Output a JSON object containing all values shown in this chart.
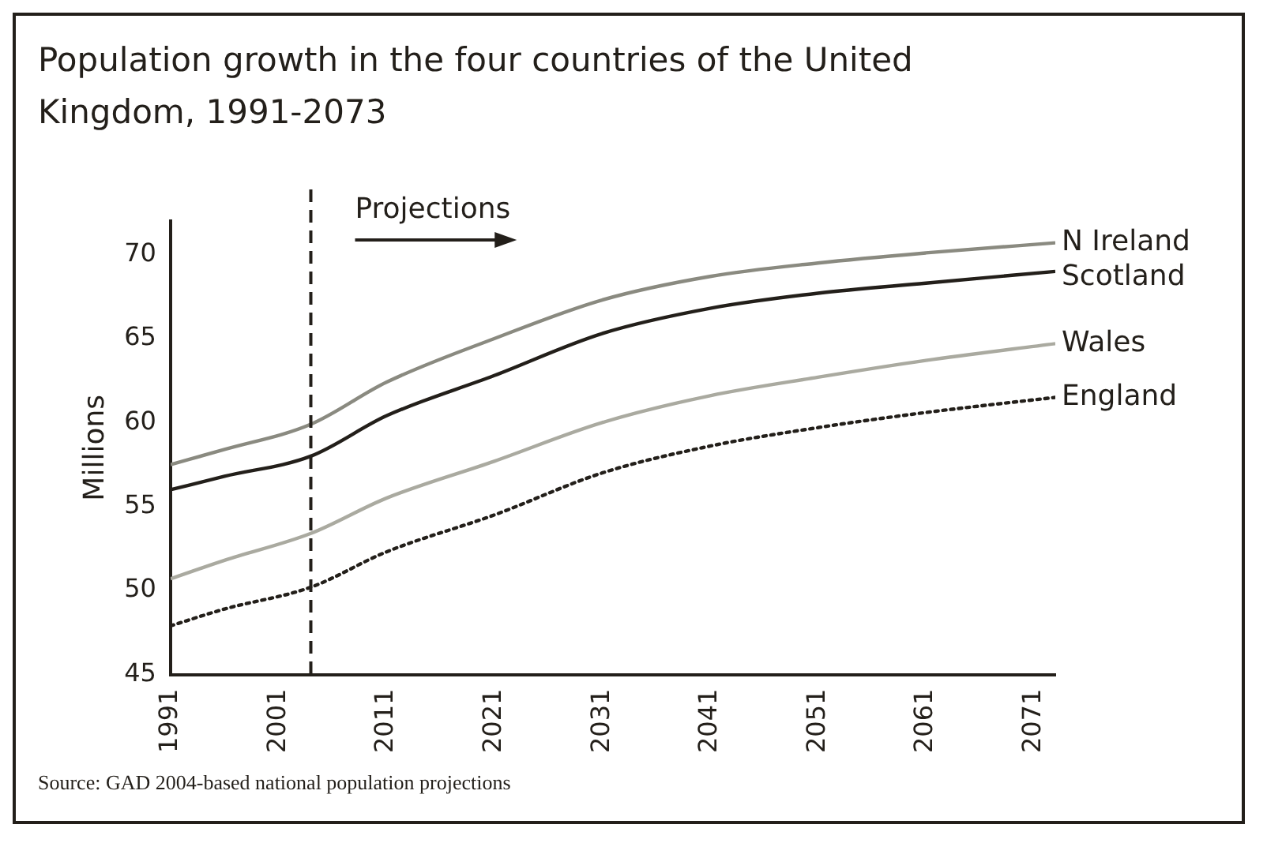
{
  "chart_data": {
    "type": "line",
    "title": "Population growth in the four countries of the United Kingdom, 1991-2073",
    "ylabel": "Millions",
    "x": [
      1991,
      1996,
      2004,
      2011,
      2021,
      2031,
      2041,
      2051,
      2061,
      2073
    ],
    "series": [
      {
        "name": "N Ireland",
        "color": "#8a8a80",
        "values": [
          57.5,
          58.4,
          59.9,
          62.4,
          65.0,
          67.3,
          68.7,
          69.5,
          70.1,
          70.7
        ]
      },
      {
        "name": "Scotland",
        "color": "#231f1a",
        "values": [
          56.0,
          56.8,
          58.0,
          60.4,
          62.8,
          65.3,
          66.8,
          67.7,
          68.3,
          69.0
        ]
      },
      {
        "name": "Wales",
        "color": "#aaaaa0",
        "values": [
          50.7,
          51.8,
          53.4,
          55.5,
          57.7,
          60.0,
          61.6,
          62.7,
          63.7,
          64.7
        ]
      },
      {
        "name": "England",
        "color": "#231f1a",
        "line_style": "dotted",
        "values": [
          47.9,
          48.9,
          50.2,
          52.3,
          54.5,
          57.0,
          58.6,
          59.7,
          60.6,
          61.5
        ]
      }
    ],
    "xlim": [
      1991,
      2073
    ],
    "xticks": [
      1991,
      2001,
      2011,
      2021,
      2031,
      2041,
      2051,
      2061,
      2071
    ],
    "ylim": [
      45,
      72
    ],
    "yticks": [
      45,
      50,
      55,
      60,
      65,
      70
    ],
    "grid": false,
    "legend": false,
    "marker": "none",
    "line_style": "solid",
    "ref_lines": [
      {
        "axis": "x",
        "value": 2004,
        "label": "Projections",
        "line_style": "dashed",
        "color": "#231f1a"
      }
    ],
    "annotations": [
      "Source: GAD 2004-based national population projections"
    ]
  }
}
